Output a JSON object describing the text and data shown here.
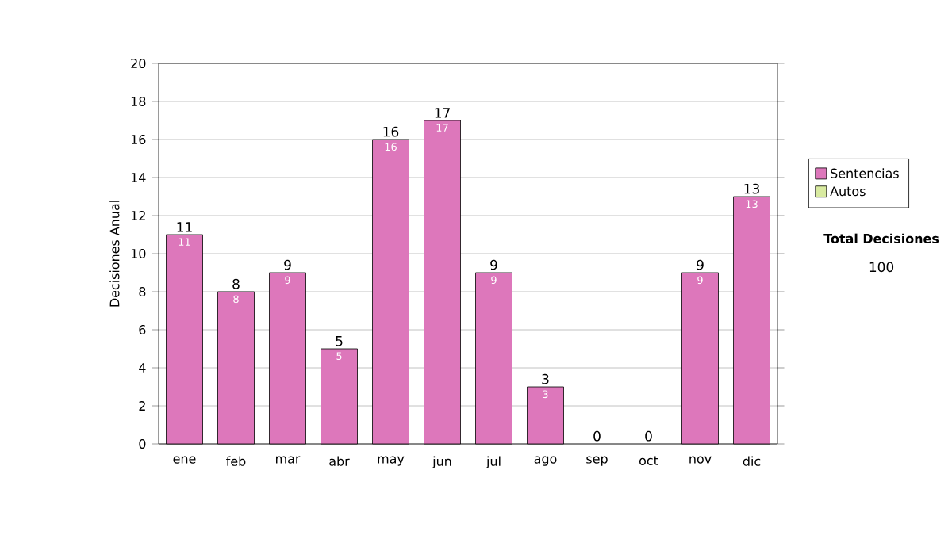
{
  "chart_data": {
    "type": "bar",
    "stacked": true,
    "ylabel": "Decisiones Anual",
    "categories": [
      "ene",
      "feb",
      "mar",
      "abr",
      "may",
      "jun",
      "jul",
      "ago",
      "sep",
      "oct",
      "nov",
      "dic"
    ],
    "series": [
      {
        "name": "Sentencias",
        "color": "#dd77bb",
        "values": [
          11,
          8,
          9,
          5,
          16,
          17,
          9,
          3,
          0,
          0,
          9,
          13
        ],
        "value_labels": [
          "11",
          "8",
          "9",
          "5",
          "16",
          "17",
          "9",
          "3",
          null,
          null,
          "9",
          "13"
        ]
      },
      {
        "name": "Autos",
        "color": "#d8eaa0",
        "values": [
          0,
          0,
          0,
          0,
          0,
          0,
          0,
          0,
          0,
          0,
          0,
          0
        ]
      }
    ],
    "totals": [
      "11",
      "8",
      "9",
      "5",
      "16",
      "17",
      "9",
      "3",
      "0",
      "0",
      "9",
      "13"
    ],
    "ylim": [
      0,
      20
    ],
    "yticks": [
      0,
      2,
      4,
      6,
      8,
      10,
      12,
      14,
      16,
      18,
      20
    ],
    "grid": "y",
    "legend": "right",
    "annotations": [
      "Total Decisiones",
      "100"
    ]
  }
}
